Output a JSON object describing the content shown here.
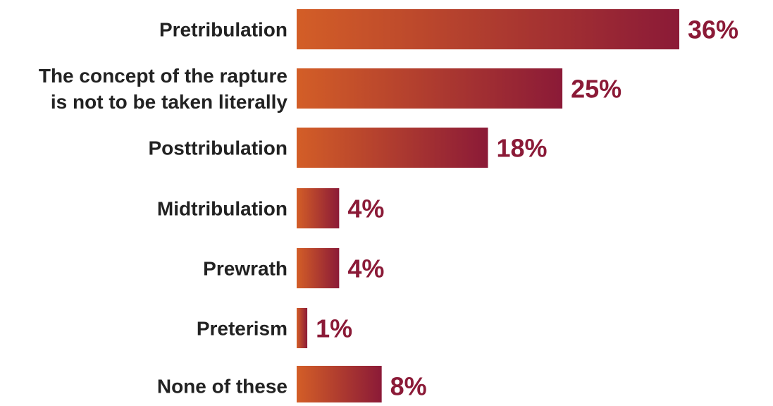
{
  "chart_data": {
    "type": "bar",
    "orientation": "horizontal",
    "categories": [
      [
        "Pretribulation"
      ],
      [
        "The concept of the rapture",
        "is not to be taken literally"
      ],
      [
        "Posttribulation"
      ],
      [
        "Midtribulation"
      ],
      [
        "Prewrath"
      ],
      [
        "Preterism"
      ],
      [
        "None of these"
      ]
    ],
    "values": [
      36,
      25,
      18,
      4,
      4,
      1,
      8
    ],
    "value_labels": [
      "36%",
      "25%",
      "18%",
      "4%",
      "4%",
      "1%",
      "8%"
    ],
    "unit": "%",
    "xlim": [
      0,
      36
    ],
    "grid": false,
    "legend": "none",
    "bar_gradient": [
      "#d35e27",
      "#8b1a37"
    ],
    "label_color": "#222222",
    "value_color": "#8b1a37"
  }
}
